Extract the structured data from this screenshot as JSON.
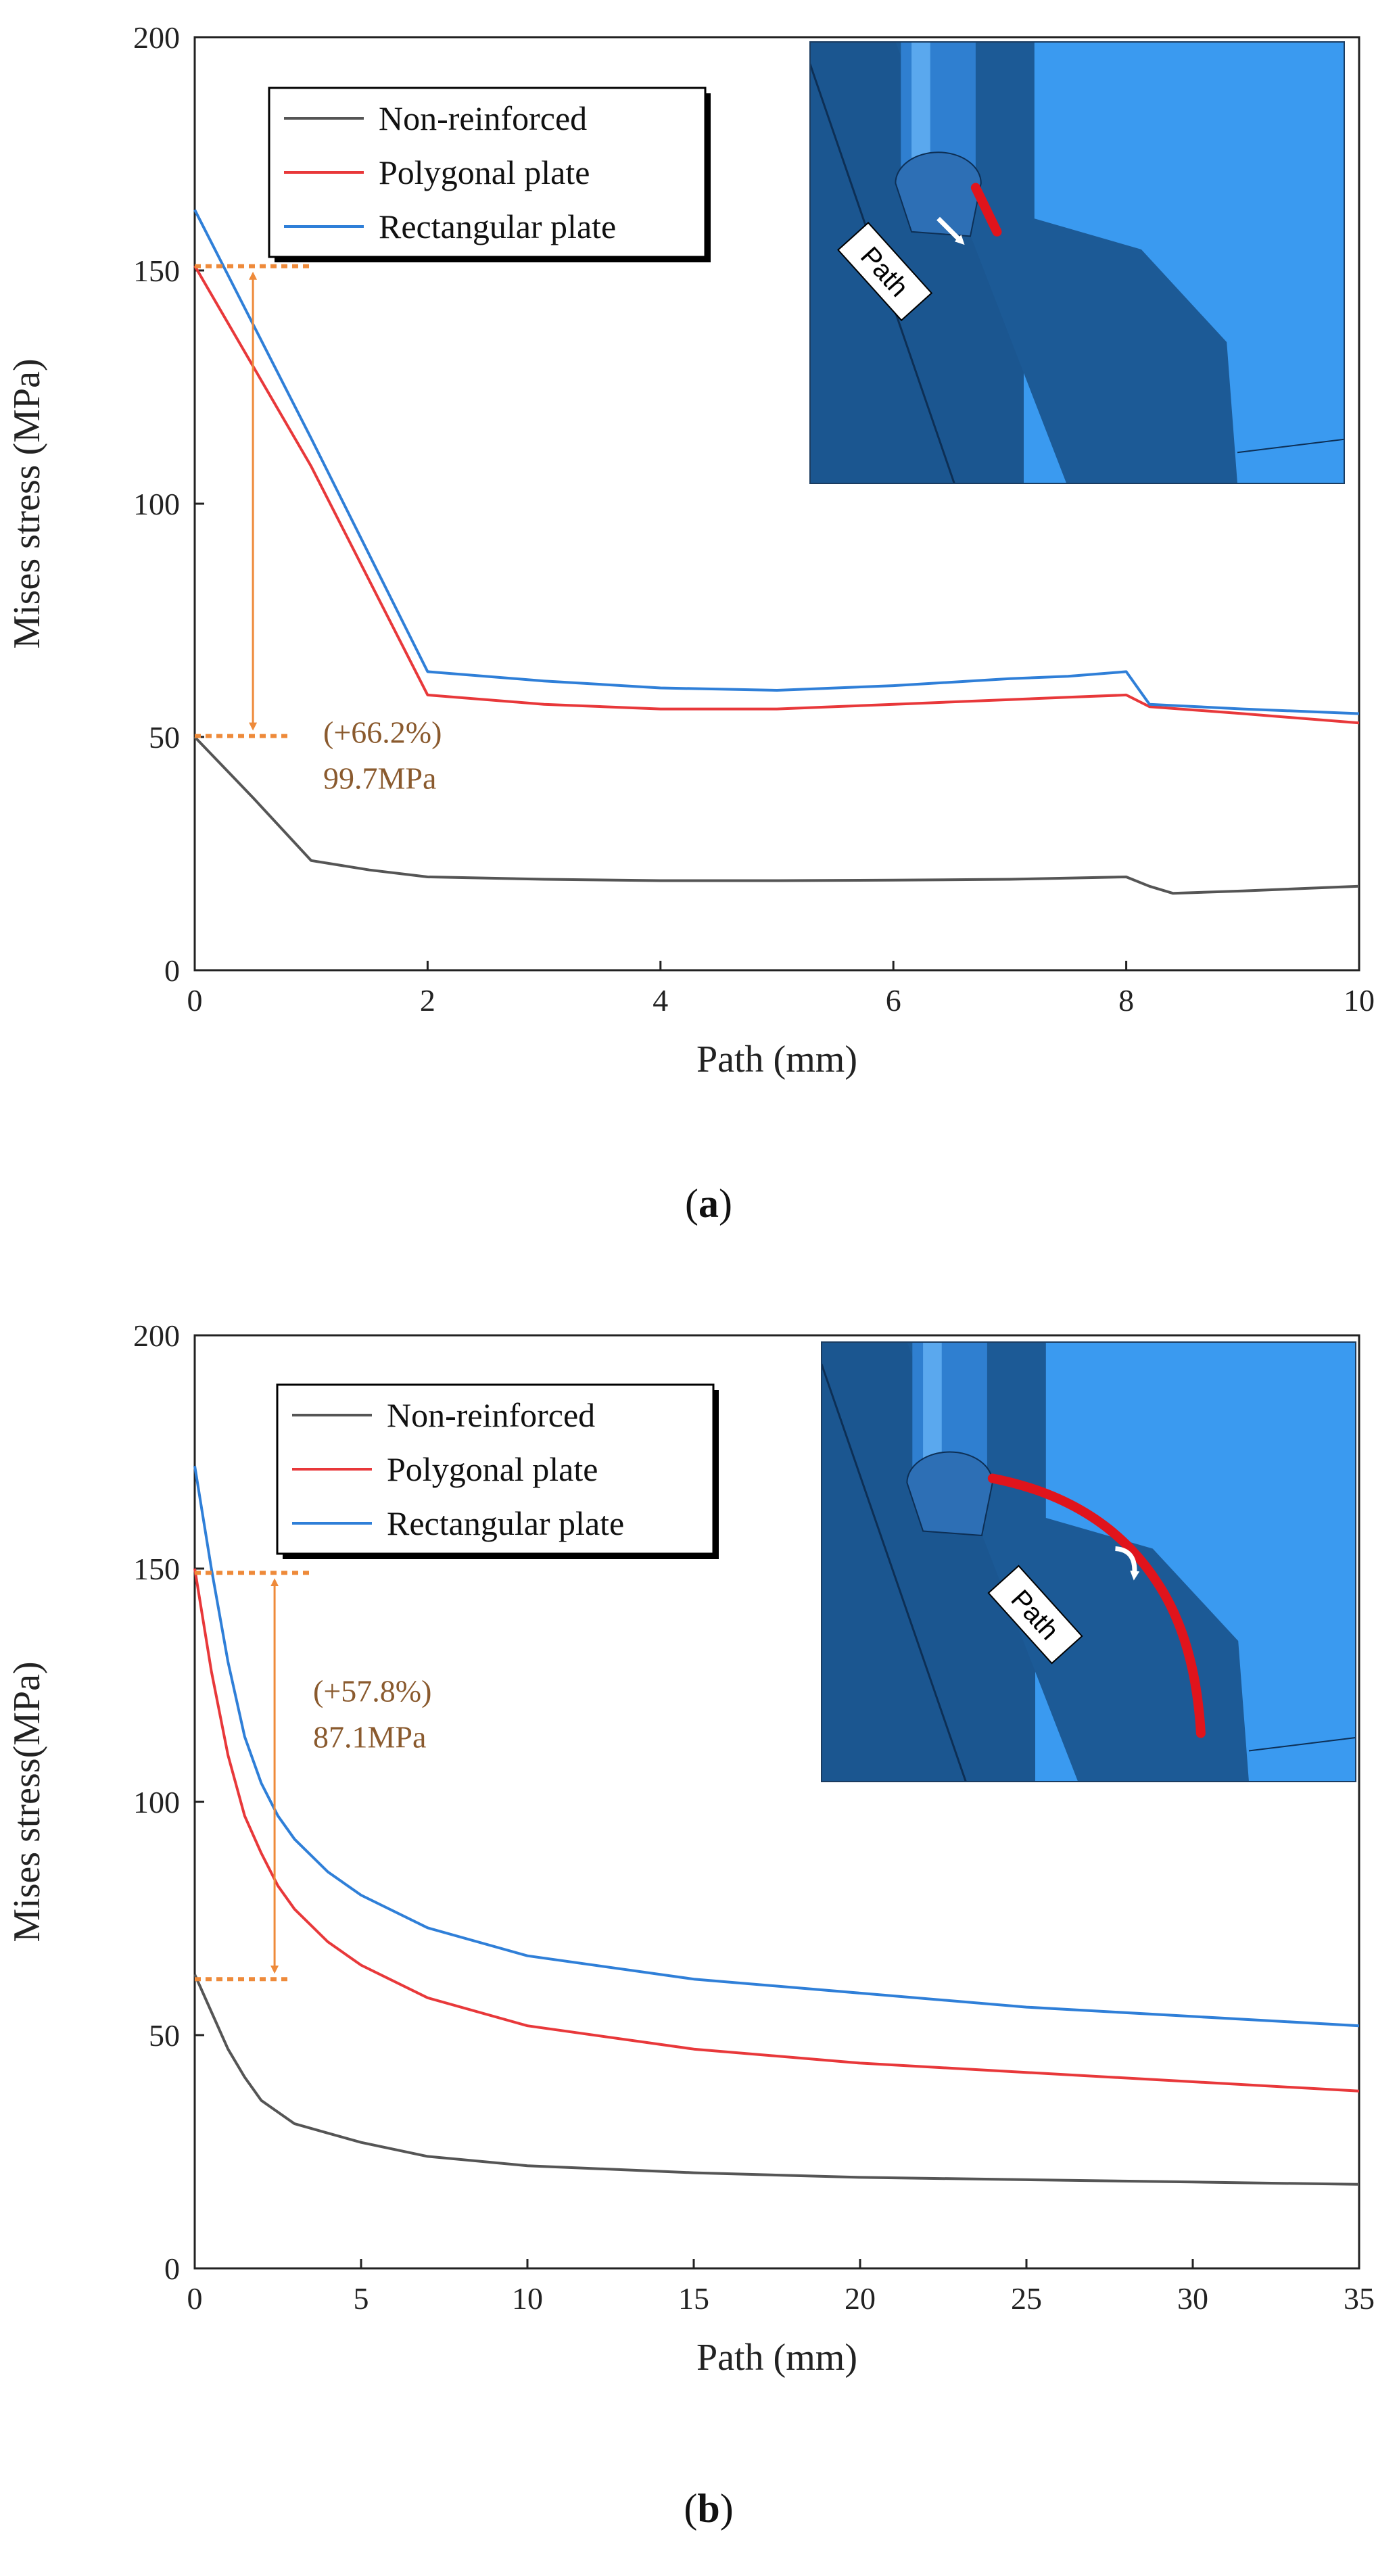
{
  "chart_data": [
    {
      "id": "a",
      "type": "line",
      "caption_letter": "a",
      "xlabel": "Path (mm)",
      "ylabel": "Mises stress (MPa)",
      "xlim": [
        0,
        10
      ],
      "ylim": [
        0,
        200
      ],
      "xticks": [
        0,
        2,
        4,
        6,
        8,
        10
      ],
      "yticks": [
        0,
        50,
        100,
        150,
        200
      ],
      "series": [
        {
          "name": "Non-reinforced",
          "color": "#555555",
          "x": [
            0,
            0.5,
            1,
            1.5,
            2,
            3,
            4,
            5,
            6,
            7,
            8,
            8.2,
            8.4,
            9,
            10
          ],
          "y": [
            50,
            37,
            23.5,
            21.5,
            20,
            19.5,
            19.2,
            19.2,
            19.3,
            19.5,
            20,
            18,
            16.5,
            17,
            18
          ]
        },
        {
          "name": "Polygonal plate",
          "color": "#e8383a",
          "x": [
            0,
            1,
            2,
            3,
            4,
            5,
            6,
            7,
            7.5,
            8,
            8.2,
            9,
            10
          ],
          "y": [
            151,
            108,
            59,
            57,
            56,
            56,
            57,
            58,
            58.5,
            59,
            56.5,
            55,
            53
          ]
        },
        {
          "name": "Rectangular plate",
          "color": "#2f7fd8",
          "x": [
            0,
            1,
            2,
            3,
            4,
            5,
            6,
            7,
            7.5,
            8,
            8.2,
            9,
            10
          ],
          "y": [
            163,
            114,
            64,
            62,
            60.5,
            60,
            61,
            62.5,
            63,
            64,
            57,
            56,
            55
          ]
        }
      ],
      "annotation": {
        "percent": "(+66.2%)",
        "value": "99.7MPa",
        "from_y": 50.2,
        "to_y": 150.9,
        "x": 0.5
      },
      "inset": {
        "label": "Path"
      }
    },
    {
      "id": "b",
      "type": "line",
      "caption_letter": "b",
      "xlabel": "Path (mm)",
      "ylabel": "Mises stress(MPa)",
      "xlim": [
        0,
        35
      ],
      "ylim": [
        0,
        200
      ],
      "xticks": [
        0,
        5,
        10,
        15,
        20,
        25,
        30,
        35
      ],
      "yticks": [
        0,
        50,
        100,
        150,
        200
      ],
      "series": [
        {
          "name": "Non-reinforced",
          "color": "#555555",
          "x": [
            0,
            0.5,
            1,
            1.5,
            2,
            3,
            4,
            5,
            7,
            10,
            15,
            20,
            25,
            30,
            35
          ],
          "y": [
            63,
            55,
            47,
            41,
            36,
            31,
            29,
            27,
            24,
            22,
            20.5,
            19.5,
            19,
            18.5,
            18
          ]
        },
        {
          "name": "Polygonal plate",
          "color": "#e8383a",
          "x": [
            0,
            0.5,
            1,
            1.5,
            2,
            2.5,
            3,
            4,
            5,
            7,
            10,
            15,
            20,
            25,
            30,
            35
          ],
          "y": [
            150,
            128,
            110,
            97,
            89,
            82,
            77,
            70,
            65,
            58,
            52,
            47,
            44,
            42,
            40,
            38
          ]
        },
        {
          "name": "Rectangular plate",
          "color": "#2f7fd8",
          "x": [
            0,
            0.5,
            1,
            1.5,
            2,
            2.5,
            3,
            4,
            5,
            7,
            10,
            15,
            20,
            25,
            30,
            35
          ],
          "y": [
            172,
            150,
            130,
            114,
            104,
            97,
            92,
            85,
            80,
            73,
            67,
            62,
            59,
            56,
            54,
            52
          ]
        }
      ],
      "annotation": {
        "percent": "(+57.8%)",
        "value": "87.1MPa",
        "from_y": 62,
        "to_y": 149.1,
        "x": 2.4
      },
      "inset": {
        "label": "Path"
      }
    }
  ]
}
